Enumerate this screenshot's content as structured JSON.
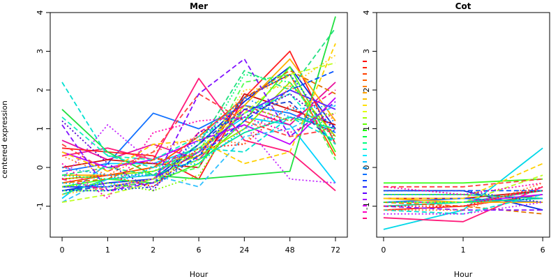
{
  "ylabel": "centered expression",
  "chart_data": [
    {
      "type": "line",
      "title": "Mer",
      "xlabel": "Hour",
      "ylabel": "centered expression",
      "categories": [
        "0",
        "1",
        "2",
        "6",
        "24",
        "48",
        "72"
      ],
      "ylim": [
        -1.8,
        4.0
      ],
      "yticks": [
        -1,
        0,
        1,
        2,
        3,
        4
      ],
      "grid": false,
      "series": [
        {
          "color": "#00d2ff",
          "dash": "solid",
          "values": [
            -0.8,
            0.1,
            0.1,
            0.5,
            1.3,
            1.1,
            -0.4
          ]
        },
        {
          "color": "#1070ff",
          "dash": "solid",
          "values": [
            -0.1,
            0.1,
            1.4,
            1.0,
            1.6,
            1.4,
            0.9
          ]
        },
        {
          "color": "#0a30e0",
          "dash": "solid",
          "values": [
            -0.6,
            -0.4,
            -0.3,
            0.6,
            1.7,
            2.6,
            1.0
          ]
        },
        {
          "color": "#ff1a7a",
          "dash": "solid",
          "values": [
            0.3,
            0.5,
            0.2,
            2.3,
            0.7,
            0.4,
            -0.6
          ]
        },
        {
          "color": "#e8109c",
          "dash": "solid",
          "values": [
            0.7,
            0.2,
            0.6,
            0.2,
            1.5,
            1.1,
            2.2
          ]
        },
        {
          "color": "#ff2020",
          "dash": "solid",
          "values": [
            0.5,
            0.4,
            0.3,
            -0.3,
            1.8,
            3.0,
            0.6
          ]
        },
        {
          "color": "#d01010",
          "dash": "solid",
          "values": [
            0.0,
            0.2,
            0.1,
            0.0,
            1.9,
            1.5,
            1.1
          ]
        },
        {
          "color": "#20e040",
          "dash": "solid",
          "values": [
            1.5,
            0.4,
            -0.2,
            -0.3,
            -0.2,
            -0.1,
            3.9
          ]
        },
        {
          "color": "#40ff20",
          "dash": "solid",
          "values": [
            -0.5,
            -0.3,
            -0.4,
            0.1,
            1.2,
            2.6,
            0.4
          ]
        },
        {
          "color": "#a0e000",
          "dash": "solid",
          "values": [
            -0.3,
            -0.2,
            -0.1,
            0.3,
            1.0,
            2.2,
            0.8
          ]
        },
        {
          "color": "#ffb000",
          "dash": "solid",
          "values": [
            -0.2,
            -0.2,
            0.0,
            0.4,
            1.6,
            2.8,
            1.2
          ]
        },
        {
          "color": "#c000ff",
          "dash": "solid",
          "values": [
            0.4,
            0.0,
            0.2,
            0.7,
            1.1,
            0.6,
            1.8
          ]
        },
        {
          "color": "#6020ff",
          "dash": "solid",
          "values": [
            -0.5,
            -0.5,
            -0.3,
            0.4,
            1.4,
            2.0,
            1.5
          ]
        },
        {
          "color": "#ff5000",
          "dash": "solid",
          "values": [
            -0.4,
            -0.2,
            0.0,
            0.8,
            1.8,
            2.4,
            0.3
          ]
        },
        {
          "color": "#00e0a0",
          "dash": "solid",
          "values": [
            -0.7,
            -0.3,
            -0.2,
            0.2,
            0.9,
            1.3,
            1.0
          ]
        },
        {
          "color": "#30c0ff",
          "dash": "dashed",
          "values": [
            -0.9,
            -0.3,
            -0.2,
            -0.5,
            0.8,
            1.0,
            1.6
          ]
        },
        {
          "color": "#0050ff",
          "dash": "dashed",
          "values": [
            -0.5,
            -0.5,
            -0.4,
            0.3,
            1.2,
            2.0,
            2.5
          ]
        },
        {
          "color": "#1a40d0",
          "dash": "dashed",
          "values": [
            -0.6,
            -0.5,
            -0.4,
            0.6,
            1.5,
            1.7,
            0.6
          ]
        },
        {
          "color": "#00e0d0",
          "dash": "dashed",
          "values": [
            2.2,
            0.3,
            0.0,
            0.5,
            0.4,
            1.3,
            0.7
          ]
        },
        {
          "color": "#10f0c0",
          "dash": "dashed",
          "values": [
            1.3,
            0.3,
            0.2,
            0.8,
            1.4,
            1.9,
            0.6
          ]
        },
        {
          "color": "#ff1090",
          "dash": "dashed",
          "values": [
            -0.3,
            -0.6,
            -0.3,
            0.9,
            1.6,
            1.2,
            2.0
          ]
        },
        {
          "color": "#ff4040",
          "dash": "dashed",
          "values": [
            0.6,
            -0.1,
            0.4,
            1.9,
            1.2,
            0.8,
            1.0
          ]
        },
        {
          "color": "#e07000",
          "dash": "dashed",
          "values": [
            -0.4,
            -0.3,
            0.2,
            0.3,
            1.8,
            2.5,
            1.9
          ]
        },
        {
          "color": "#ffd000",
          "dash": "dashed",
          "values": [
            0.4,
            -0.1,
            0.6,
            0.7,
            0.1,
            0.4,
            3.2
          ]
        },
        {
          "color": "#c0ff20",
          "dash": "dashed",
          "values": [
            -0.9,
            -0.7,
            -0.4,
            0.5,
            1.4,
            2.4,
            2.7
          ]
        },
        {
          "color": "#50ff50",
          "dash": "dashed",
          "values": [
            -0.6,
            -0.6,
            -0.3,
            0.0,
            2.2,
            2.4,
            0.2
          ]
        },
        {
          "color": "#20e080",
          "dash": "dashed",
          "values": [
            -0.2,
            0.0,
            -0.2,
            0.6,
            2.5,
            2.0,
            3.6
          ]
        },
        {
          "color": "#8010ff",
          "dash": "dashed",
          "values": [
            1.1,
            -0.6,
            -0.4,
            1.9,
            2.8,
            0.8,
            1.7
          ]
        },
        {
          "color": "#5000d0",
          "dash": "dotted",
          "values": [
            1.2,
            0.1,
            -0.6,
            0.9,
            1.3,
            1.9,
            1.0
          ]
        },
        {
          "color": "#c020ff",
          "dash": "dotted",
          "values": [
            -0.3,
            1.1,
            0.1,
            0.4,
            1.1,
            -0.3,
            -0.4
          ]
        },
        {
          "color": "#ff00b0",
          "dash": "dotted",
          "values": [
            0.1,
            -0.8,
            0.9,
            1.2,
            1.3,
            0.9,
            1.4
          ]
        },
        {
          "color": "#ff2020",
          "dash": "dotted",
          "values": [
            -0.3,
            -0.2,
            -0.5,
            0.5,
            0.6,
            1.6,
            0.8
          ]
        },
        {
          "color": "#ff8030",
          "dash": "dotted",
          "values": [
            0.3,
            -0.2,
            0.4,
            0.8,
            0.6,
            2.1,
            1.2
          ]
        },
        {
          "color": "#ffd020",
          "dash": "dotted",
          "values": [
            -0.7,
            -0.5,
            -0.3,
            0.2,
            2.0,
            2.1,
            2.9
          ]
        },
        {
          "color": "#80ff00",
          "dash": "dotted",
          "values": [
            -0.5,
            -0.4,
            -0.6,
            -0.2,
            1.6,
            1.2,
            1.4
          ]
        },
        {
          "color": "#00ff70",
          "dash": "dotted",
          "values": [
            -0.2,
            -0.3,
            -0.1,
            0.4,
            2.4,
            2.2,
            0.7
          ]
        },
        {
          "color": "#00c8ff",
          "dash": "dotted",
          "values": [
            -0.4,
            -0.5,
            0.0,
            0.1,
            1.0,
            1.5,
            1.6
          ]
        },
        {
          "color": "#2090ff",
          "dash": "dotted",
          "values": [
            0.0,
            -0.2,
            -0.2,
            0.7,
            1.8,
            1.3,
            1.2
          ]
        },
        {
          "color": "#1040f0",
          "dash": "dotted",
          "values": [
            -0.6,
            -0.6,
            -0.5,
            0.3,
            1.8,
            2.4,
            0.9
          ]
        }
      ]
    },
    {
      "type": "line",
      "title": "Cot",
      "xlabel": "Hour",
      "ylabel": "",
      "categories": [
        "0",
        "1",
        "6"
      ],
      "ylim": [
        -1.8,
        4.0
      ],
      "yticks": [
        -1,
        0,
        1,
        2,
        3,
        4
      ],
      "grid": false,
      "series": [
        {
          "color": "#00d8e8",
          "dash": "solid",
          "values": [
            -1.6,
            -1.1,
            0.5
          ]
        },
        {
          "color": "#40ff20",
          "dash": "solid",
          "values": [
            -0.4,
            -0.4,
            -0.3
          ]
        },
        {
          "color": "#0a30e0",
          "dash": "solid",
          "values": [
            -0.6,
            -0.6,
            -1.1
          ]
        },
        {
          "color": "#ff1a7a",
          "dash": "solid",
          "values": [
            -1.3,
            -1.4,
            -0.5
          ]
        },
        {
          "color": "#e8109c",
          "dash": "solid",
          "values": [
            -0.9,
            -0.9,
            -0.6
          ]
        },
        {
          "color": "#ff2020",
          "dash": "solid",
          "values": [
            -1.1,
            -1.0,
            -0.7
          ]
        },
        {
          "color": "#d01010",
          "dash": "solid",
          "values": [
            -0.8,
            -0.8,
            -0.6
          ]
        },
        {
          "color": "#20e040",
          "dash": "solid",
          "values": [
            -0.7,
            -0.7,
            -0.8
          ]
        },
        {
          "color": "#1070ff",
          "dash": "solid",
          "values": [
            -0.9,
            -0.8,
            -0.9
          ]
        },
        {
          "color": "#c000ff",
          "dash": "solid",
          "values": [
            -1.0,
            -0.9,
            -0.7
          ]
        },
        {
          "color": "#ffb000",
          "dash": "solid",
          "values": [
            -0.8,
            -0.9,
            -0.9
          ]
        },
        {
          "color": "#00e0a0",
          "dash": "solid",
          "values": [
            -1.0,
            -0.9,
            -0.8
          ]
        },
        {
          "color": "#0050ff",
          "dash": "dashed",
          "values": [
            -0.6,
            -0.6,
            -0.6
          ]
        },
        {
          "color": "#ff4040",
          "dash": "dashed",
          "values": [
            -0.5,
            -0.5,
            -0.3
          ]
        },
        {
          "color": "#ffd000",
          "dash": "dashed",
          "values": [
            -0.8,
            -0.8,
            0.1
          ]
        },
        {
          "color": "#c0ff20",
          "dash": "dashed",
          "values": [
            -0.9,
            -0.9,
            -0.2
          ]
        },
        {
          "color": "#e07000",
          "dash": "dashed",
          "values": [
            -0.9,
            -1.0,
            -1.2
          ]
        },
        {
          "color": "#8010ff",
          "dash": "dashed",
          "values": [
            -1.0,
            -1.1,
            -1.1
          ]
        },
        {
          "color": "#00e0d0",
          "dash": "dashed",
          "values": [
            -1.1,
            -1.2,
            -0.7
          ]
        },
        {
          "color": "#1a40d0",
          "dash": "dotted",
          "values": [
            -0.6,
            -0.6,
            -0.9
          ]
        },
        {
          "color": "#2090ff",
          "dash": "dotted",
          "values": [
            -0.7,
            -0.7,
            -0.8
          ]
        },
        {
          "color": "#ff00b0",
          "dash": "dotted",
          "values": [
            -0.5,
            -0.7,
            -0.4
          ]
        },
        {
          "color": "#ff8030",
          "dash": "dotted",
          "values": [
            -1.1,
            -1.1,
            -0.4
          ]
        },
        {
          "color": "#00ff70",
          "dash": "dotted",
          "values": [
            -0.9,
            -0.9,
            -0.6
          ]
        },
        {
          "color": "#c020ff",
          "dash": "dotted",
          "values": [
            -1.2,
            -1.2,
            -0.9
          ]
        },
        {
          "color": "#ff2020",
          "dash": "dotted",
          "values": [
            -1.0,
            -1.0,
            -0.5
          ]
        }
      ],
      "marker_swatches": [
        "#ff0000",
        "#ff2000",
        "#ff4000",
        "#ff6000",
        "#ff8000",
        "#ffa000",
        "#ffc000",
        "#ffe000",
        "#e0ff00",
        "#a0ff00",
        "#60ff00",
        "#20ff00",
        "#00ff40",
        "#00ff80",
        "#00ffc0",
        "#00e8ff",
        "#00c0ff",
        "#0098ff",
        "#0070ff",
        "#0048ff",
        "#2020ff",
        "#6000ff",
        "#a000ff",
        "#e000ff",
        "#ff00c0",
        "#ff0080"
      ]
    }
  ]
}
